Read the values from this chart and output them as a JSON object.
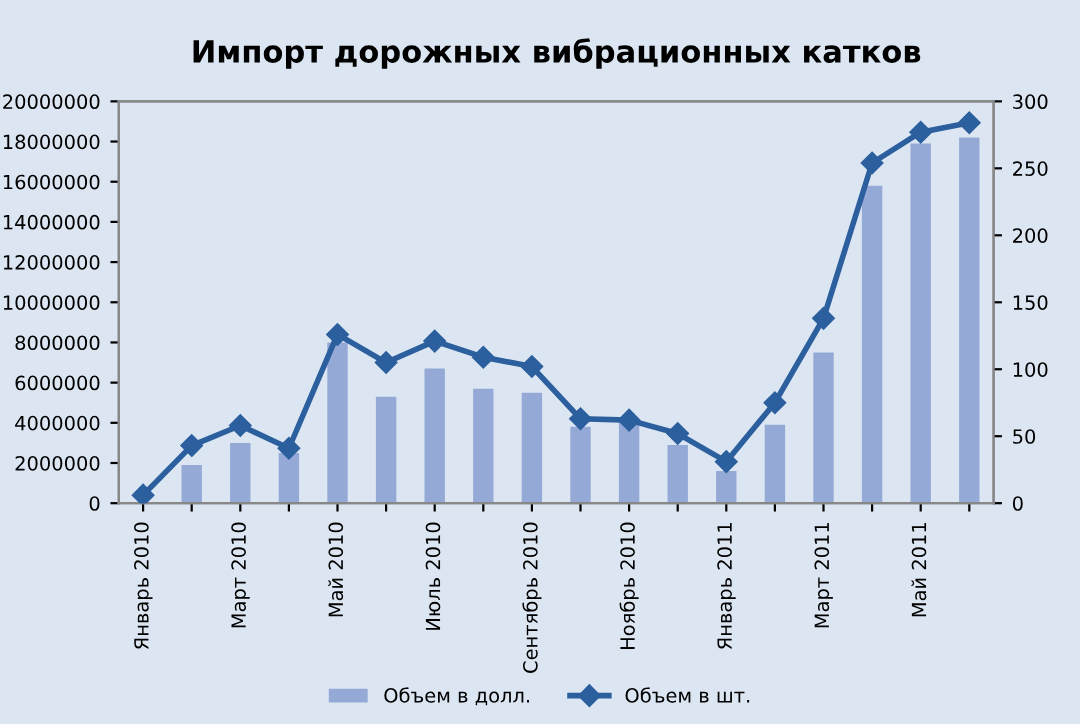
{
  "chart_data": {
    "type": "bar",
    "title": "Импорт дорожных вибрационных катков",
    "categories": [
      "Январь 2010",
      null,
      "Март 2010",
      null,
      "Май 2010",
      null,
      "Июль 2010",
      null,
      "Сентябрь 2010",
      null,
      "Ноябрь 2010",
      null,
      "Январь 2011",
      null,
      "Март 2011",
      null,
      "Май 2011",
      null
    ],
    "series": [
      {
        "name": "Объем в долл.",
        "color": "#95a9d6",
        "values": [
          null,
          1900000,
          3000000,
          2500000,
          8000000,
          5300000,
          6700000,
          5700000,
          5500000,
          3800000,
          4000000,
          2900000,
          1600000,
          3900000,
          7500000,
          15800000,
          17900000,
          18200000
        ]
      },
      {
        "name": "Объем в шт.",
        "type": "line",
        "axis": "y2",
        "color": "#2c5f9e",
        "marker": "diamond",
        "values": [
          6,
          43,
          58,
          41,
          126,
          105,
          121,
          109,
          102,
          63,
          62,
          52,
          31,
          75,
          138,
          254,
          277,
          284
        ]
      }
    ],
    "ylim": [
      0,
      20000000
    ],
    "yticks": [
      0,
      2000000,
      4000000,
      6000000,
      8000000,
      10000000,
      12000000,
      14000000,
      16000000,
      18000000,
      20000000
    ],
    "y2lim": [
      0,
      300
    ],
    "y2ticks": [
      0,
      50,
      100,
      150,
      200,
      250,
      300
    ],
    "grid": false,
    "legend": "bottom"
  }
}
